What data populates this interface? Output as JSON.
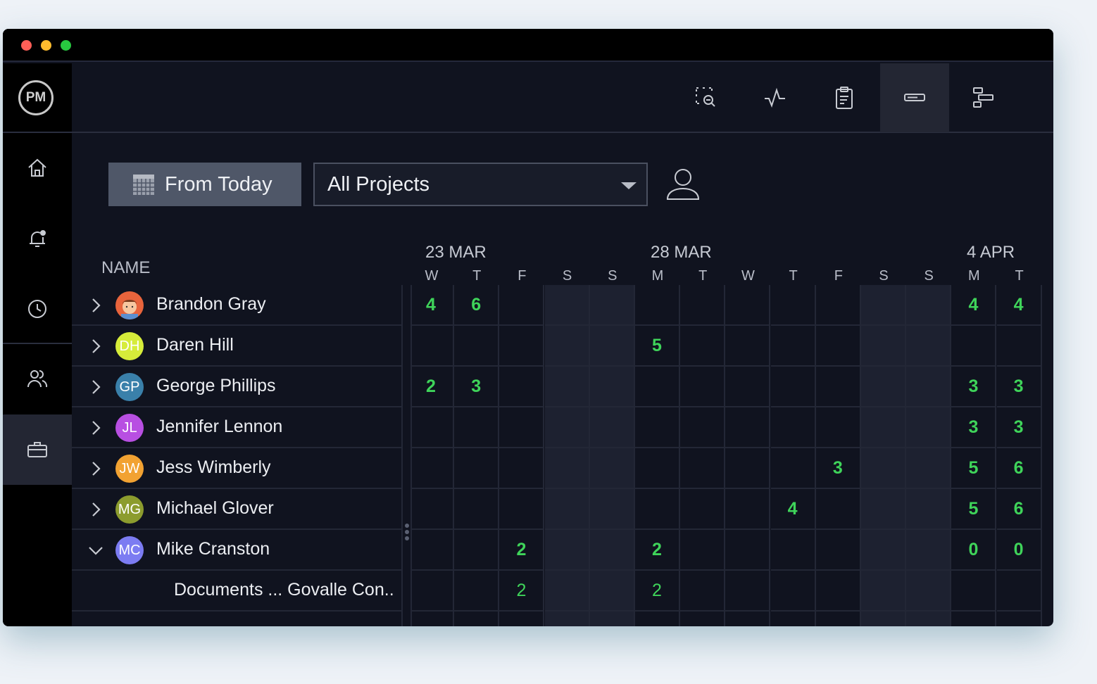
{
  "window": {
    "traffic_lights": [
      "#ff5f57",
      "#febc2e",
      "#28c840"
    ]
  },
  "logo": "PM",
  "sidebar": {
    "items": [
      {
        "name": "home",
        "icon": "home-icon"
      },
      {
        "name": "notifications",
        "icon": "bell-icon"
      },
      {
        "name": "timesheets",
        "icon": "clock-icon"
      },
      {
        "name": "team",
        "icon": "people-icon"
      },
      {
        "name": "portfolio",
        "icon": "briefcase-icon",
        "active": true
      }
    ]
  },
  "toolbar": {
    "items": [
      {
        "icon": "zoom-out-icon"
      },
      {
        "icon": "pulse-icon"
      },
      {
        "icon": "clipboard-icon"
      },
      {
        "icon": "workload-bar-icon",
        "active": true
      },
      {
        "icon": "gantt-icon"
      }
    ]
  },
  "filters": {
    "from_label": "From Today",
    "project_select": "All Projects"
  },
  "grid": {
    "name_header": "NAME",
    "dates": [
      "23 MAR",
      "28 MAR",
      "4 APR"
    ],
    "days": [
      "W",
      "T",
      "F",
      "S",
      "S",
      "M",
      "T",
      "W",
      "T",
      "F",
      "S",
      "S",
      "M",
      "T"
    ],
    "weekend_columns": [
      3,
      4,
      10,
      11
    ],
    "accent": "#3fd45a",
    "rows": [
      {
        "name": "Brandon Gray",
        "initials": "",
        "avatar_color": "#e8643c",
        "expanded": false,
        "values": [
          "4",
          "6",
          "",
          "",
          "",
          "",
          "",
          "",
          "",
          "",
          "",
          "",
          "4",
          "4"
        ]
      },
      {
        "name": "Daren Hill",
        "initials": "DH",
        "avatar_color": "#d6ec3a",
        "expanded": false,
        "values": [
          "",
          "",
          "",
          "",
          "",
          "5",
          "",
          "",
          "",
          "",
          "",
          "",
          "",
          ""
        ]
      },
      {
        "name": "George Phillips",
        "initials": "GP",
        "avatar_color": "#3a80aa",
        "expanded": false,
        "values": [
          "2",
          "3",
          "",
          "",
          "",
          "",
          "",
          "",
          "",
          "",
          "",
          "",
          "3",
          "3"
        ]
      },
      {
        "name": "Jennifer Lennon",
        "initials": "JL",
        "avatar_color": "#b84fe2",
        "expanded": false,
        "values": [
          "",
          "",
          "",
          "",
          "",
          "",
          "",
          "",
          "",
          "",
          "",
          "",
          "3",
          "3"
        ]
      },
      {
        "name": "Jess Wimberly",
        "initials": "JW",
        "avatar_color": "#f2a232",
        "expanded": false,
        "values": [
          "",
          "",
          "",
          "",
          "",
          "",
          "",
          "",
          "",
          "3",
          "",
          "",
          "5",
          "6"
        ]
      },
      {
        "name": "Michael Glover",
        "initials": "MG",
        "avatar_color": "#8c9c2e",
        "expanded": false,
        "values": [
          "",
          "",
          "",
          "",
          "",
          "",
          "",
          "",
          "4",
          "",
          "",
          "",
          "5",
          "6"
        ]
      },
      {
        "name": "Mike Cranston",
        "initials": "MC",
        "avatar_color": "#7c7cf2",
        "expanded": true,
        "values": [
          "",
          "",
          "2",
          "",
          "",
          "2",
          "",
          "",
          "",
          "",
          "",
          "",
          "0",
          "0"
        ]
      },
      {
        "name": "Documents ...  Govalle Con..",
        "sub": true,
        "values": [
          "",
          "",
          "2",
          "",
          "",
          "2",
          "",
          "",
          "",
          "",
          "",
          "",
          "",
          ""
        ]
      }
    ]
  }
}
